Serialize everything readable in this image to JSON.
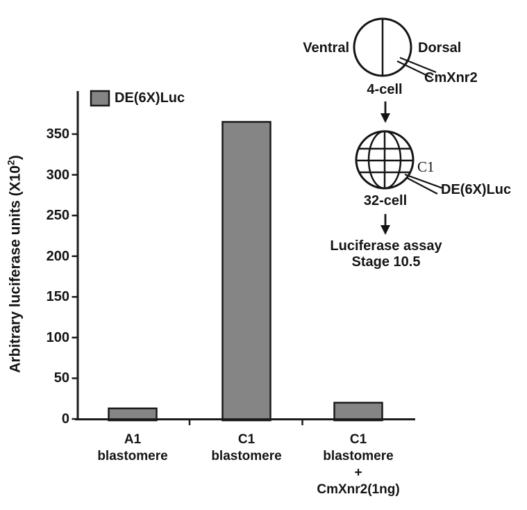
{
  "chart_data": {
    "type": "bar",
    "title": "",
    "series_name": "DE(6X)Luc",
    "categories": [
      [
        "A1",
        "blastomere"
      ],
      [
        "C1",
        "blastomere"
      ],
      [
        "C1",
        "blastomere",
        "+",
        "CmXnr2(1ng)"
      ]
    ],
    "values": [
      13,
      365,
      20
    ],
    "ylabel": "Arbitrary luciferase units (X10^2)",
    "ylim": [
      0,
      385
    ],
    "yticks": [
      0,
      50,
      100,
      150,
      200,
      250,
      300,
      350
    ],
    "grid": false,
    "legend_position": "top-left",
    "bar_color": "#858585",
    "line_color": "#1a1a1a"
  },
  "legend": {
    "label": "DE(6X)Luc"
  },
  "y_axis_label": {
    "prefix": "Arbitrary luciferase units (X10",
    "superscript": "2",
    "suffix": ")"
  },
  "diagram": {
    "ventral_label": "Ventral",
    "dorsal_label": "Dorsal",
    "four_cell_injection_label": "CmXnr2",
    "four_cell_stage_label": "4-cell",
    "c1_blastomere_label": "C1",
    "thirty_two_cell_injection_label": "DE(6X)Luc",
    "thirty_two_cell_stage_label": "32-cell",
    "assay_line1": "Luciferase assay",
    "assay_line2": "Stage 10.5"
  }
}
